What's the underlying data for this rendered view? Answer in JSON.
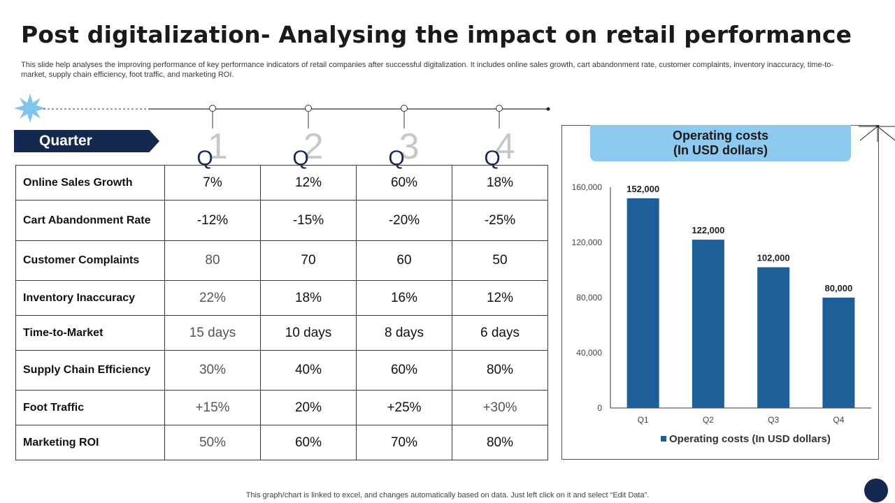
{
  "title": "Post digitalization- Analysing the impact on retail performance",
  "subtitle": "This slide help analyses the improving performance of key performance indicators of retail companies after successful digitalization. It includes online sales growth, cart abandonment rate, customer complaints, inventory inaccuracy, time-to-market, supply chain efficiency, foot traffic, and marketing ROI.",
  "quarter_label": "Quarter",
  "quarters": [
    {
      "q": "Q",
      "n": "1"
    },
    {
      "q": "Q",
      "n": "2"
    },
    {
      "q": "Q",
      "n": "3"
    },
    {
      "q": "Q",
      "n": "4"
    }
  ],
  "table": {
    "rows": [
      {
        "label": "Online Sales Growth",
        "values": [
          "7%",
          "12%",
          "60%",
          "18%"
        ]
      },
      {
        "label": "Cart Abandonment Rate",
        "values": [
          "-12%",
          "-15%",
          "-20%",
          "-25%"
        ]
      },
      {
        "label": "Customer Complaints",
        "values": [
          "80",
          "70",
          "60",
          "50"
        ]
      },
      {
        "label": "Inventory Inaccuracy",
        "values": [
          "22%",
          "18%",
          "16%",
          "12%"
        ]
      },
      {
        "label": "Time-to-Market",
        "values": [
          "15 days",
          "10 days",
          "8 days",
          "6 days"
        ]
      },
      {
        "label": "Supply Chain Efficiency",
        "values": [
          "30%",
          "40%",
          "60%",
          "80%"
        ]
      },
      {
        "label": "Foot Traffic",
        "values": [
          "+15%",
          "20%",
          "+25%",
          "+30%"
        ]
      },
      {
        "label": "Marketing ROI",
        "values": [
          "50%",
          "60%",
          "70%",
          "80%"
        ]
      }
    ]
  },
  "chart_header": {
    "line1": "Operating costs",
    "line2": "(In USD dollars)"
  },
  "chart_data": {
    "type": "bar",
    "title": "Operating costs (In USD dollars)",
    "categories": [
      "Q1",
      "Q2",
      "Q3",
      "Q4"
    ],
    "values": [
      152000,
      122000,
      102000,
      80000
    ],
    "value_labels": [
      "152,000",
      "122,000",
      "102,000",
      "80,000"
    ],
    "ylim": [
      0,
      160000
    ],
    "yticks": [
      0,
      40000,
      80000,
      120000,
      160000
    ],
    "ytick_labels": [
      "0",
      "40,000",
      "80,000",
      "120,000",
      "160,000"
    ],
    "legend": "Operating costs (In USD dollars)",
    "legend_position": "bottom",
    "bar_color": "#1f5f99"
  },
  "footnote": "This graph/chart is linked to excel,  and changes automatically based on data. Just left click on it and select “Edit Data”."
}
